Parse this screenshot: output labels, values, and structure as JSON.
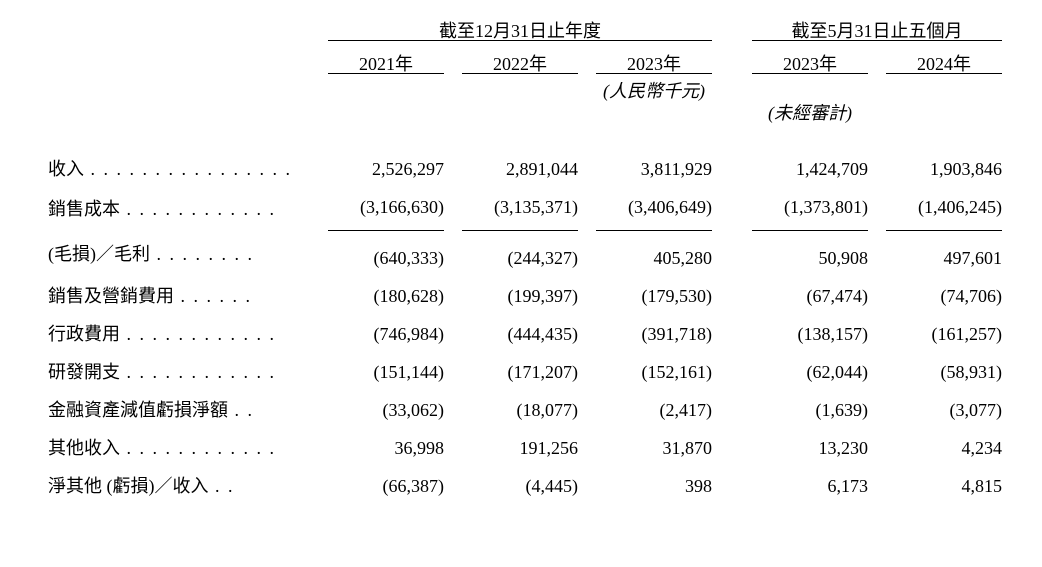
{
  "headers": {
    "group_annual": "截至12月31日止年度",
    "group_5m": "截至5月31日止五個月",
    "y2021": "2021年",
    "y2022": "2022年",
    "y2023": "2023年",
    "y2023_5m": "2023年",
    "y2024_5m": "2024年",
    "unit": "(人民幣千元)",
    "unaudited": "(未經審計)"
  },
  "rows": {
    "revenue": {
      "label": "收入",
      "v": [
        "2,526,297",
        "2,891,044",
        "3,811,929",
        "1,424,709",
        "1,903,846"
      ]
    },
    "cogs": {
      "label": "銷售成本",
      "v": [
        "(3,166,630)",
        "(3,135,371)",
        "(3,406,649)",
        "(1,373,801)",
        "(1,406,245)"
      ]
    },
    "gross": {
      "label": "(毛損)／毛利",
      "v": [
        "(640,333)",
        "(244,327)",
        "405,280",
        "50,908",
        "497,601"
      ]
    },
    "selling": {
      "label": "銷售及營銷費用",
      "v": [
        "(180,628)",
        "(199,397)",
        "(179,530)",
        "(67,474)",
        "(74,706)"
      ]
    },
    "admin": {
      "label": "行政費用",
      "v": [
        "(746,984)",
        "(444,435)",
        "(391,718)",
        "(138,157)",
        "(161,257)"
      ]
    },
    "rnd": {
      "label": "研發開支",
      "v": [
        "(151,144)",
        "(171,207)",
        "(152,161)",
        "(62,044)",
        "(58,931)"
      ]
    },
    "impair": {
      "label": "金融資產減值虧損淨額",
      "v": [
        "(33,062)",
        "(18,077)",
        "(2,417)",
        "(1,639)",
        "(3,077)"
      ]
    },
    "otherinc": {
      "label": "其他收入",
      "v": [
        "36,998",
        "191,256",
        "31,870",
        "13,230",
        "4,234"
      ]
    },
    "netother": {
      "label": "淨其他 (虧損)／收入",
      "v": [
        "(66,387)",
        "(4,445)",
        "398",
        "6,173",
        "4,815"
      ]
    }
  },
  "style": {
    "dot_leader_total_chars": 20,
    "cjk_char_weight": 2
  }
}
